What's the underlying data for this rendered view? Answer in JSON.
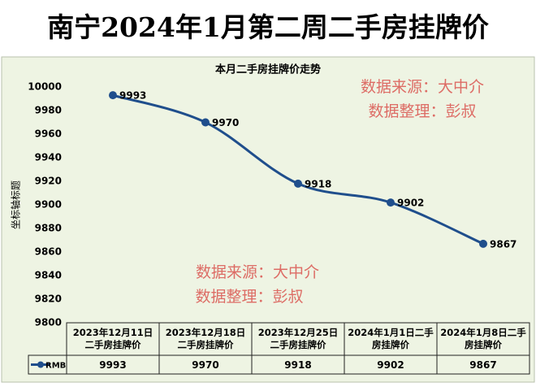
{
  "chart_data": {
    "type": "line",
    "banner_title": "南宁2024年1月第二周二手房挂牌价",
    "title": "本月二手房挂牌价走势",
    "y_label": "坐标轴标题",
    "categories": [
      "2023年12月11日二手房挂牌价",
      "2023年12月18日二手房挂牌价",
      "2023年12月25日二手房挂牌价",
      "2024年1月1日二手房挂牌价",
      "2024年1月8日二手房挂牌价"
    ],
    "series": [
      {
        "name": "RMB",
        "color": "#1f4e8c",
        "values": [
          9993,
          9970,
          9918,
          9902,
          9867
        ]
      }
    ],
    "ylim": [
      9800,
      10000
    ],
    "yticks": [
      9800,
      9820,
      9840,
      9860,
      9880,
      9900,
      9920,
      9940,
      9960,
      9980,
      10000
    ],
    "grid": false,
    "data_table": true,
    "annotations": [
      "数据来源：大中介",
      "数据整理：彭叔",
      "数据来源：大中介",
      "数据整理：彭叔"
    ]
  }
}
